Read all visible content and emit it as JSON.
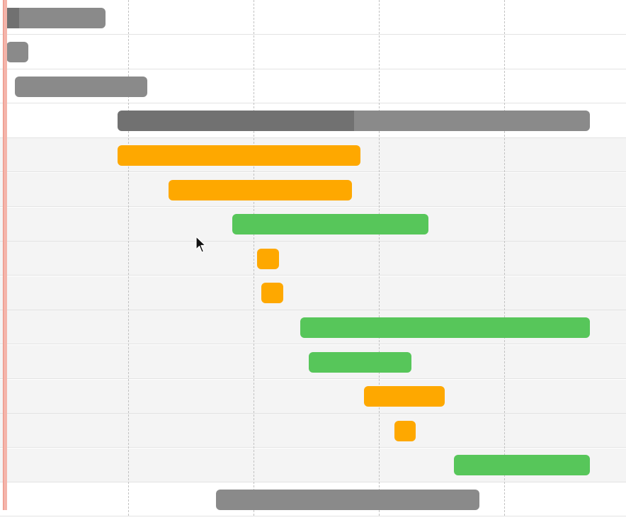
{
  "colors": {
    "group": "#8a8a8a",
    "in_progress": "#fea800",
    "done": "#57c65a",
    "today_marker": "#f4b4aa",
    "row_alt": "#f4f4f4",
    "gridline": "#c2c2c2"
  },
  "rows": [
    {
      "status": "group",
      "progress": 0.16,
      "shaded": false
    },
    {
      "status": "group",
      "progress": 0,
      "shaded": false
    },
    {
      "status": "group",
      "progress": 0,
      "shaded": false
    },
    {
      "status": "group",
      "progress": 0.5,
      "shaded": false
    },
    {
      "status": "in_progress",
      "progress": 0,
      "shaded": true
    },
    {
      "status": "in_progress",
      "progress": 0,
      "shaded": true
    },
    {
      "status": "done",
      "progress": 0,
      "shaded": true
    },
    {
      "status": "in_progress",
      "progress": 0,
      "shaded": true
    },
    {
      "status": "in_progress",
      "progress": 0,
      "shaded": true
    },
    {
      "status": "done",
      "progress": 0,
      "shaded": true
    },
    {
      "status": "done",
      "progress": 0,
      "shaded": true
    },
    {
      "status": "in_progress",
      "progress": 0,
      "shaded": true
    },
    {
      "status": "in_progress",
      "progress": 0,
      "shaded": true
    },
    {
      "status": "done",
      "progress": 0,
      "shaded": true
    },
    {
      "status": "group",
      "progress": 0,
      "shaded": false
    }
  ],
  "cursor": {
    "icon": "mouse-pointer-icon"
  }
}
